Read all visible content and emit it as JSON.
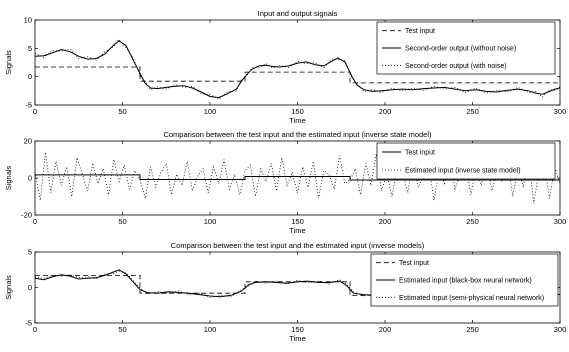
{
  "chart_data": [
    {
      "type": "line",
      "title": "Input and output signals",
      "xlabel": "Time",
      "ylabel": "Signals",
      "xlim": [
        0,
        300
      ],
      "ylim": [
        -5,
        10
      ],
      "xticks": [
        0,
        50,
        100,
        150,
        200,
        250,
        300
      ],
      "yticks": [
        -5,
        0,
        5,
        10
      ],
      "xtick_labels": [
        "0",
        "50",
        "100",
        "150",
        "200",
        "250",
        "300"
      ],
      "ytick_labels": [
        "-5",
        "0",
        "5",
        "10"
      ],
      "legend_position": "top-right",
      "series": [
        {
          "name": "Test input",
          "style": "dashed",
          "x": [
            0,
            60,
            60,
            120,
            120,
            180,
            180,
            300
          ],
          "y": [
            1.7,
            1.7,
            -0.8,
            -0.8,
            0.8,
            0.8,
            -1.1,
            -1.1
          ]
        },
        {
          "name": "Second-order output (without noise)",
          "style": "solid",
          "x": [
            0,
            5,
            10,
            15,
            20,
            25,
            30,
            35,
            40,
            45,
            48,
            52,
            56,
            60,
            63,
            66,
            70,
            75,
            80,
            85,
            90,
            95,
            100,
            105,
            110,
            115,
            118,
            121,
            124,
            128,
            132,
            136,
            140,
            145,
            150,
            155,
            160,
            165,
            170,
            173,
            177,
            181,
            184,
            188,
            193,
            198,
            204,
            210,
            216,
            222,
            228,
            234,
            240,
            246,
            252,
            258,
            264,
            270,
            276,
            282,
            286,
            290,
            294,
            298,
            300
          ],
          "y": [
            3.6,
            3.7,
            4.2,
            4.8,
            4.4,
            3.6,
            3.1,
            3.2,
            4.0,
            5.6,
            6.3,
            5.5,
            3.0,
            0.6,
            -1.2,
            -2.0,
            -2.1,
            -1.9,
            -1.7,
            -1.6,
            -2.0,
            -2.7,
            -3.5,
            -3.7,
            -3.0,
            -2.2,
            -0.8,
            0.4,
            1.3,
            1.9,
            2.0,
            1.8,
            1.7,
            1.9,
            2.4,
            2.6,
            2.1,
            1.9,
            2.8,
            3.3,
            2.6,
            0.1,
            -1.5,
            -2.3,
            -2.6,
            -2.5,
            -2.3,
            -2.2,
            -2.3,
            -2.1,
            -2.0,
            -1.9,
            -2.2,
            -2.5,
            -2.3,
            -2.6,
            -2.7,
            -2.4,
            -2.2,
            -2.5,
            -2.9,
            -3.1,
            -2.6,
            -2.1,
            -2.0
          ]
        },
        {
          "name": "Second-order output (with noise)",
          "style": "dotted",
          "x": [
            0,
            5,
            10,
            15,
            20,
            25,
            30,
            35,
            40,
            45,
            48,
            52,
            56,
            60,
            63,
            66,
            70,
            75,
            80,
            85,
            90,
            95,
            100,
            105,
            110,
            115,
            118,
            121,
            124,
            128,
            132,
            136,
            140,
            145,
            150,
            155,
            160,
            165,
            170,
            173,
            177,
            181,
            184,
            188,
            193,
            198,
            204,
            210,
            216,
            222,
            228,
            234,
            240,
            246,
            252,
            258,
            264,
            270,
            276,
            282,
            286,
            290,
            294,
            298,
            300
          ],
          "y": [
            4.1,
            3.4,
            4.6,
            4.5,
            4.9,
            3.2,
            3.5,
            2.9,
            4.4,
            5.3,
            6.6,
            5.1,
            3.4,
            0.2,
            -0.9,
            -2.3,
            -1.8,
            -2.2,
            -1.4,
            -1.9,
            -1.7,
            -3.0,
            -3.2,
            -4.0,
            -2.7,
            -2.5,
            -0.5,
            0.1,
            1.6,
            1.6,
            2.3,
            1.5,
            2.0,
            1.6,
            2.7,
            2.3,
            2.4,
            1.6,
            3.1,
            3.0,
            2.9,
            -0.2,
            -1.2,
            -2.6,
            -2.3,
            -2.8,
            -2.0,
            -2.5,
            -2.0,
            -2.4,
            -1.7,
            -2.2,
            -1.9,
            -2.8,
            -2.0,
            -2.9,
            -2.4,
            -2.7,
            -1.9,
            -2.8,
            -2.6,
            -3.6,
            -2.3,
            -2.4,
            -1.8
          ]
        }
      ]
    },
    {
      "type": "line",
      "title": "Comparison between the test input and the estimated input (inverse state model)",
      "xlabel": "Time",
      "ylabel": "Signals",
      "xlim": [
        0,
        300
      ],
      "ylim": [
        -20,
        20
      ],
      "xticks": [
        0,
        50,
        100,
        150,
        200,
        250,
        300
      ],
      "yticks": [
        -20,
        0,
        20
      ],
      "xtick_labels": [
        "0",
        "50",
        "100",
        "150",
        "200",
        "250",
        "300"
      ],
      "ytick_labels": [
        "-20",
        "0",
        "20"
      ],
      "legend_position": "top-right",
      "series": [
        {
          "name": "Test input",
          "style": "solid",
          "x": [
            0,
            60,
            60,
            120,
            120,
            180,
            180,
            300
          ],
          "y": [
            1.7,
            1.7,
            -0.8,
            -0.8,
            0.8,
            0.8,
            -1.1,
            -1.1
          ]
        },
        {
          "name": "Estimated input (inverse state model)",
          "style": "dotted",
          "x": [
            0,
            3,
            6,
            9,
            12,
            15,
            18,
            21,
            24,
            27,
            30,
            33,
            36,
            39,
            42,
            45,
            48,
            51,
            54,
            57,
            60,
            63,
            66,
            69,
            72,
            75,
            78,
            81,
            84,
            87,
            90,
            93,
            96,
            99,
            102,
            105,
            108,
            111,
            114,
            117,
            120,
            123,
            126,
            129,
            132,
            135,
            138,
            141,
            144,
            147,
            150,
            153,
            156,
            159,
            162,
            165,
            168,
            171,
            174,
            177,
            180,
            183,
            186,
            189,
            192,
            195,
            198,
            201,
            204,
            207,
            210,
            213,
            216,
            219,
            222,
            225,
            228,
            231,
            234,
            237,
            240,
            243,
            246,
            249,
            252,
            255,
            258,
            261,
            264,
            267,
            270,
            273,
            276,
            279,
            282,
            285,
            288,
            291,
            294,
            297,
            300
          ],
          "y": [
            3,
            -12,
            14,
            -8,
            9,
            -4,
            6,
            -10,
            11,
            2,
            -7,
            8,
            -3,
            5,
            -9,
            10,
            -2,
            7,
            -6,
            4,
            -1,
            -11,
            6,
            -5,
            3,
            8,
            -9,
            2,
            -4,
            9,
            -7,
            1,
            5,
            -8,
            6,
            -3,
            10,
            -6,
            2,
            -9,
            4,
            7,
            -10,
            5,
            -2,
            8,
            -7,
            11,
            -4,
            3,
            -8,
            6,
            -5,
            9,
            -11,
            4,
            2,
            -6,
            12,
            -3,
            -1,
            5,
            -9,
            8,
            -4,
            13,
            -7,
            2,
            -10,
            6,
            3,
            -8,
            9,
            -5,
            1,
            7,
            -12,
            4,
            -3,
            10,
            -6,
            2,
            8,
            -9,
            5,
            -4,
            11,
            -7,
            3,
            -2,
            9,
            -10,
            6,
            -5,
            12,
            -14,
            4,
            8,
            -11,
            6,
            -3
          ]
        }
      ]
    },
    {
      "type": "line",
      "title": "Comparison between the test input and the estimated input (inverse models)",
      "xlabel": "Time",
      "ylabel": "Signals",
      "xlim": [
        0,
        300
      ],
      "ylim": [
        -5,
        5
      ],
      "xticks": [
        0,
        50,
        100,
        150,
        200,
        250,
        300
      ],
      "yticks": [
        -5,
        0,
        5
      ],
      "xtick_labels": [
        "0",
        "50",
        "100",
        "150",
        "200",
        "250",
        "300"
      ],
      "ytick_labels": [
        "-5",
        "0",
        "5"
      ],
      "legend_position": "top-right",
      "series": [
        {
          "name": "Test input",
          "style": "dashed",
          "x": [
            0,
            60,
            60,
            120,
            120,
            180,
            180,
            300
          ],
          "y": [
            1.7,
            1.7,
            -0.8,
            -0.8,
            0.8,
            0.8,
            -1.1,
            -1.1
          ]
        },
        {
          "name": "Estimated input (black-box neural network)",
          "style": "solid",
          "x": [
            0,
            5,
            10,
            15,
            20,
            25,
            30,
            35,
            40,
            45,
            48,
            52,
            56,
            60,
            64,
            70,
            76,
            82,
            88,
            94,
            100,
            106,
            112,
            118,
            122,
            126,
            132,
            138,
            144,
            150,
            156,
            162,
            168,
            174,
            178,
            182,
            188,
            194,
            200,
            206,
            212,
            218,
            224,
            230,
            236,
            242,
            248,
            254,
            260,
            266,
            272,
            278,
            284,
            288,
            292,
            296,
            300
          ],
          "y": [
            1.3,
            1.1,
            1.5,
            1.8,
            1.6,
            1.2,
            1.3,
            1.4,
            1.7,
            2.2,
            2.5,
            1.9,
            0.8,
            -0.3,
            -0.7,
            -0.8,
            -0.6,
            -0.7,
            -0.8,
            -1.0,
            -1.2,
            -1.3,
            -1.1,
            -0.5,
            0.4,
            0.7,
            0.8,
            0.7,
            0.6,
            0.8,
            0.9,
            0.7,
            0.7,
            0.9,
            0.3,
            -0.8,
            -1.0,
            -1.1,
            -0.9,
            -1.0,
            -0.8,
            -1.1,
            -0.9,
            -1.0,
            -1.2,
            -0.9,
            -1.0,
            -1.1,
            -0.9,
            -1.2,
            -1.0,
            -0.9,
            -1.3,
            -1.6,
            -1.1,
            -0.9,
            -1.0
          ]
        },
        {
          "name": "Estimated input (semi-physical neural network)",
          "style": "dotted",
          "x": [
            0,
            5,
            10,
            15,
            20,
            25,
            30,
            35,
            40,
            45,
            48,
            52,
            56,
            60,
            64,
            70,
            76,
            82,
            88,
            94,
            100,
            106,
            112,
            118,
            122,
            126,
            132,
            138,
            144,
            150,
            156,
            162,
            168,
            174,
            178,
            182,
            188,
            194,
            200,
            206,
            212,
            218,
            224,
            230,
            236,
            242,
            248,
            254,
            260,
            266,
            272,
            278,
            284,
            288,
            292,
            296,
            300
          ],
          "y": [
            1.5,
            1.3,
            1.7,
            1.6,
            1.8,
            1.4,
            1.5,
            1.2,
            1.9,
            2.0,
            2.3,
            2.1,
            1.0,
            -0.1,
            -0.9,
            -0.6,
            -0.8,
            -0.5,
            -1.0,
            -0.8,
            -1.4,
            -1.1,
            -1.3,
            -0.3,
            0.2,
            0.9,
            0.6,
            0.9,
            0.5,
            1.0,
            0.7,
            0.9,
            0.5,
            1.1,
            0.5,
            -0.6,
            -1.2,
            -0.9,
            -1.1,
            -0.8,
            -1.0,
            -0.9,
            -1.1,
            -0.8,
            -1.0,
            -1.1,
            -0.8,
            -1.3,
            -0.7,
            -1.0,
            -1.2,
            -0.7,
            -1.1,
            -1.8,
            -0.9,
            -1.1,
            -0.8
          ]
        }
      ]
    }
  ]
}
